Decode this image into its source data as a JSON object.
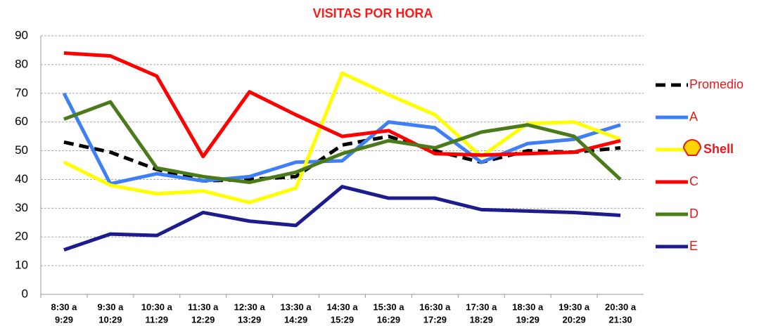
{
  "chart_data": {
    "type": "line",
    "title": "VISITAS  POR HORA",
    "categories": [
      [
        "8:30 a",
        "9:29"
      ],
      [
        "9:30 a",
        "10:29"
      ],
      [
        "10:30 a",
        "11:29"
      ],
      [
        "11:30 a",
        "12:29"
      ],
      [
        "12:30 a",
        "13:29"
      ],
      [
        "13:30 a",
        "14:29"
      ],
      [
        "14:30 a",
        "15:29"
      ],
      [
        "15:30 a",
        "16:29"
      ],
      [
        "16:30 a",
        "17:29"
      ],
      [
        "17:30 a",
        "18:29"
      ],
      [
        "18:30 a",
        "19:29"
      ],
      [
        "19:30 a",
        "20:29"
      ],
      [
        "20:30 a",
        "21:30"
      ]
    ],
    "series": [
      {
        "name": "Promedio",
        "color": "#000000",
        "dashed": true,
        "values": [
          53,
          49.5,
          43.5,
          39.5,
          40,
          41,
          52,
          55,
          50,
          46,
          50,
          49.5,
          51
        ]
      },
      {
        "name": "A",
        "color": "#3f7ff5",
        "values": [
          70,
          38.5,
          42,
          39.5,
          41,
          46,
          46.5,
          60,
          58,
          46,
          52.5,
          54,
          59
        ]
      },
      {
        "name": "Shell",
        "color": "#ffff00",
        "values": [
          46,
          38,
          35,
          36,
          32,
          37,
          77,
          69.5,
          62.5,
          48,
          59.5,
          60,
          54
        ]
      },
      {
        "name": "C",
        "color": "#ff0000",
        "values": [
          84,
          83,
          76,
          48,
          70.5,
          62.5,
          55,
          57,
          49,
          48.5,
          49,
          49.5,
          53.5
        ]
      },
      {
        "name": "D",
        "color": "#4a7a19",
        "values": [
          61,
          67,
          44,
          41,
          39,
          42.5,
          49,
          53.5,
          51,
          56.5,
          59,
          55,
          40
        ]
      },
      {
        "name": "E",
        "color": "#1c1c8c",
        "values": [
          15.5,
          21,
          20.5,
          28.5,
          25.5,
          24,
          37.5,
          33.5,
          33.5,
          29.5,
          29,
          28.5,
          27.5
        ]
      }
    ],
    "ylim": [
      0,
      90
    ],
    "yticks": [
      0,
      10,
      20,
      30,
      40,
      50,
      60,
      70,
      80,
      90
    ],
    "grid": true,
    "legend": "right"
  }
}
